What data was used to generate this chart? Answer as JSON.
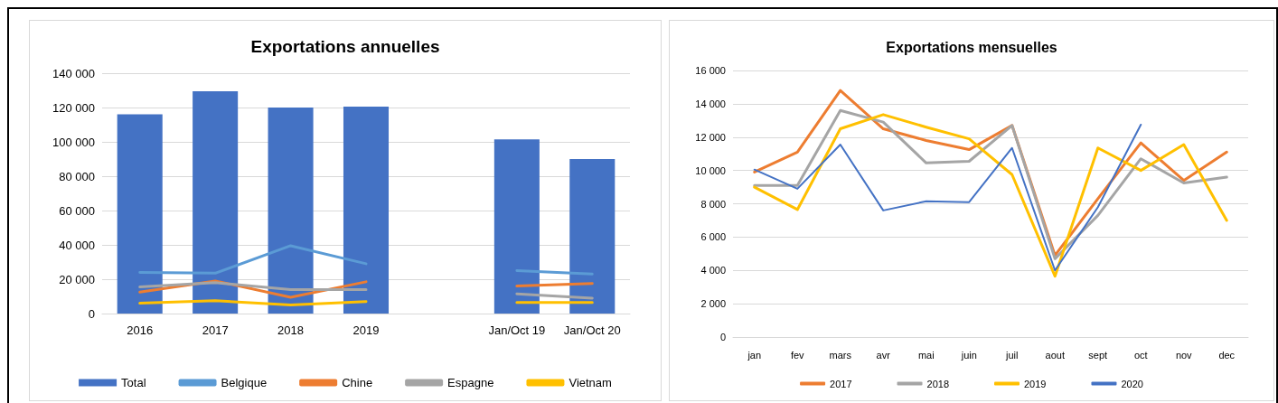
{
  "chart_data": [
    {
      "type": "bar",
      "title": "Exportations annuelles",
      "categories": [
        "2016",
        "2017",
        "2018",
        "2019",
        null,
        "Jan/Oct 19",
        "Jan/Oct 20"
      ],
      "ylim": [
        0,
        140000
      ],
      "yticks": [
        {
          "value": 0,
          "label": "0"
        },
        {
          "value": 20000,
          "label": "20 000"
        },
        {
          "value": 40000,
          "label": "40 000"
        },
        {
          "value": 60000,
          "label": "60 000"
        },
        {
          "value": 80000,
          "label": "80 000"
        },
        {
          "value": 100000,
          "label": "100 000"
        },
        {
          "value": 120000,
          "label": "120 000"
        },
        {
          "value": 140000,
          "label": "140 000"
        }
      ],
      "grid": "y",
      "legend": "bottom",
      "marker": "none",
      "line_style": "solid",
      "series": [
        {
          "name": "Total",
          "color": "#4472c4",
          "values": [
            116000,
            129500,
            120000,
            120500,
            null,
            101500,
            90000
          ]
        },
        {
          "name": "Belgique",
          "type": "line",
          "color": "#5b9bd5",
          "values": [
            24000,
            23500,
            39500,
            29000,
            null,
            25000,
            23000
          ]
        },
        {
          "name": "Chine",
          "type": "line",
          "color": "#ed7d31",
          "values": [
            12500,
            19000,
            9500,
            18500,
            null,
            16000,
            17500
          ]
        },
        {
          "name": "Espagne",
          "type": "line",
          "color": "#a5a5a5",
          "values": [
            15500,
            18000,
            14000,
            14000,
            null,
            11500,
            9000
          ]
        },
        {
          "name": "Vietnam",
          "type": "line",
          "color": "#ffc000",
          "values": [
            6000,
            7500,
            5000,
            7000,
            null,
            6500,
            6500
          ]
        }
      ]
    },
    {
      "type": "line",
      "title": "Exportations mensuelles",
      "categories": [
        "jan",
        "fev",
        "mars",
        "avr",
        "mai",
        "juin",
        "juil",
        "aout",
        "sept",
        "oct",
        "nov",
        "dec"
      ],
      "ylim": [
        0,
        16000
      ],
      "yticks": [
        {
          "value": 0,
          "label": "0"
        },
        {
          "value": 2000,
          "label": "2 000"
        },
        {
          "value": 4000,
          "label": "4 000"
        },
        {
          "value": 6000,
          "label": "6 000"
        },
        {
          "value": 8000,
          "label": "8 000"
        },
        {
          "value": 10000,
          "label": "10 000"
        },
        {
          "value": 12000,
          "label": "12 000"
        },
        {
          "value": 14000,
          "label": "14 000"
        },
        {
          "value": 16000,
          "label": "16 000"
        }
      ],
      "grid": "y",
      "legend": "bottom",
      "marker": "none",
      "line_style": "solid",
      "series": [
        {
          "name": "2017",
          "color": "#ed7d31",
          "values": [
            9900,
            11100,
            14800,
            12500,
            11800,
            11250,
            12700,
            4900,
            8300,
            11650,
            9400,
            11100
          ]
        },
        {
          "name": "2018",
          "color": "#a5a5a5",
          "values": [
            9100,
            9100,
            13600,
            12900,
            10450,
            10550,
            12700,
            4700,
            7300,
            10700,
            9250,
            9600
          ]
        },
        {
          "name": "2019",
          "color": "#ffc000",
          "values": [
            9000,
            7650,
            12500,
            13350,
            12600,
            11900,
            9750,
            3650,
            11350,
            10000,
            11550,
            7000
          ]
        },
        {
          "name": "2020",
          "color": "#4472c4",
          "values": [
            10050,
            8900,
            11550,
            7600,
            8150,
            8100,
            11350,
            4000,
            7800,
            12750,
            null,
            null
          ]
        }
      ]
    }
  ]
}
